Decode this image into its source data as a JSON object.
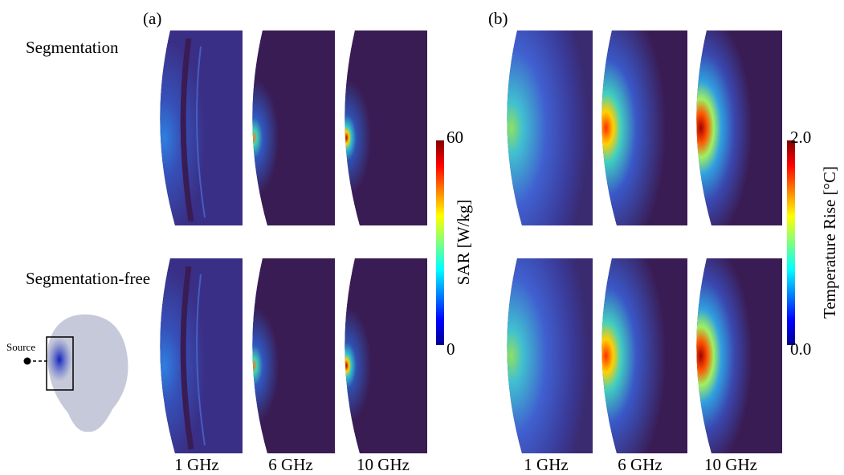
{
  "panel_labels": [
    "(a)",
    "(b)"
  ],
  "row_labels": [
    "Segmentation",
    "Segmentation-free"
  ],
  "source_label": "Source",
  "sar_colorbar": {
    "title": "SAR [W/kg]",
    "max_label": "60",
    "min_label": "0"
  },
  "temperature_colorbar": {
    "title": "Temperature Rise [°C]",
    "max_label": "2.0",
    "min_label": "0.0"
  },
  "frequency_labels_a": [
    "1 GHz",
    "6 GHz",
    "10 GHz"
  ],
  "frequency_labels_b": [
    "1 GHz",
    "6 GHz",
    "10 GHz"
  ]
}
